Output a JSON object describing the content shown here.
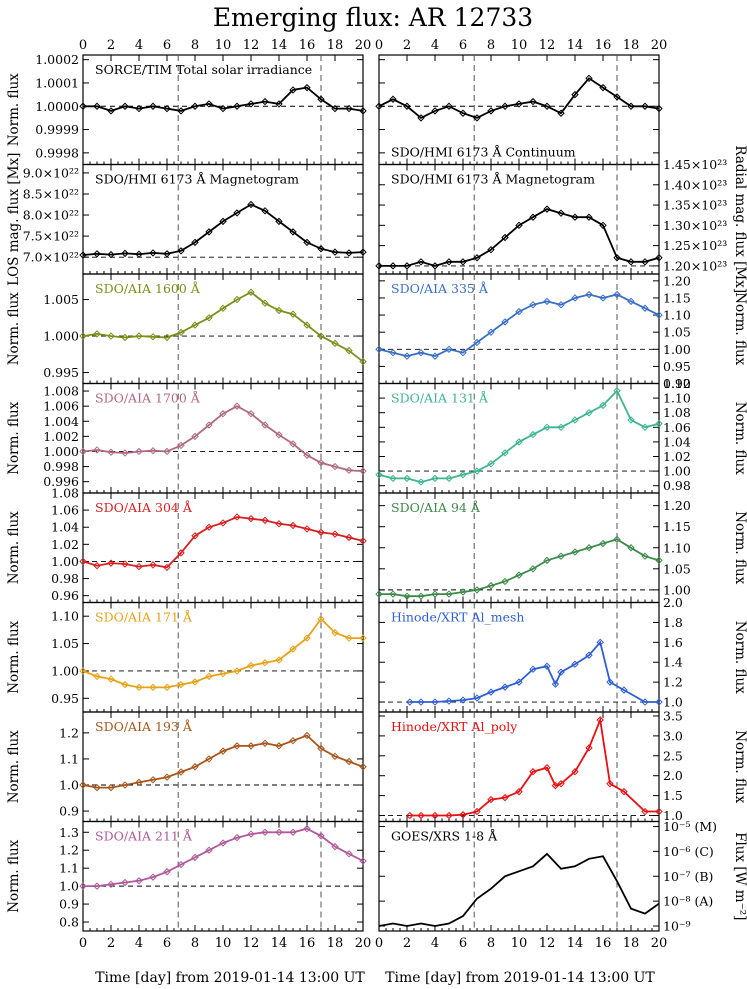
{
  "title": "Emerging flux: AR 12733",
  "xlabel": "Time [day] from 2019-01-14 13:00 UT",
  "x_ticks": [
    0,
    2,
    4,
    6,
    8,
    10,
    12,
    14,
    16,
    18,
    20
  ],
  "xlim": [
    0,
    20
  ],
  "vlines": [
    6.8,
    17.0
  ],
  "chart_data": [
    {
      "id": "tsi",
      "type": "line",
      "label": "SORCE/TIM Total solar irradiance",
      "color": "#000000",
      "ylabel": "Norm. flux",
      "ylim": [
        0.99975,
        1.00022
      ],
      "yticks": [
        0.9998,
        0.9999,
        1.0,
        1.0001,
        1.0002
      ],
      "tick_labels": [
        "0.9998",
        "0.9999",
        "1.0000",
        "1.0001",
        "1.0002"
      ],
      "ref": 1.0,
      "x": [
        0,
        1,
        2,
        3,
        4,
        5,
        6,
        7,
        8,
        9,
        10,
        11,
        12,
        13,
        14,
        15,
        16,
        17,
        18,
        19,
        20
      ],
      "values": [
        1.0,
        1.0,
        0.99998,
        1.0,
        0.99999,
        1.0,
        0.99999,
        0.99998,
        1.0,
        1.00001,
        0.99999,
        1.0,
        1.00001,
        1.00002,
        1.00001,
        1.00007,
        1.00008,
        1.00003,
        0.99999,
        0.99999,
        0.99998
      ]
    },
    {
      "id": "cont",
      "type": "line",
      "label": "SDO/HMI 6173 Å Continuum",
      "color": "#000000",
      "ylabel": "",
      "ylim": [
        0.99975,
        1.00022
      ],
      "yticks": [
        0.9998,
        0.9999,
        1.0,
        1.0001,
        1.0002
      ],
      "tick_labels": [
        "",
        "",
        "",
        "",
        ""
      ],
      "ref": 1.0,
      "x": [
        0,
        1,
        2,
        3,
        4,
        5,
        6,
        7,
        8,
        9,
        10,
        11,
        12,
        13,
        14,
        15,
        16,
        17,
        18,
        19,
        20
      ],
      "values": [
        1.0,
        1.00003,
        1.0,
        0.99995,
        0.99998,
        1.0,
        0.99997,
        0.99995,
        0.99998,
        1.0,
        1.00001,
        1.00002,
        1.0,
        0.99997,
        1.00005,
        1.00012,
        1.00008,
        1.00004,
        1.0,
        1.0,
        0.99999
      ]
    },
    {
      "id": "los",
      "type": "line",
      "label": "SDO/HMI 6173 Å Magnetogram",
      "color": "#000000",
      "ylabel": "LOS mag. flux [Mx]",
      "ylim": [
        6.6e+22,
        9.2e+22
      ],
      "yticks": [
        7e+22,
        7.5e+22,
        8e+22,
        8.5e+22,
        9e+22
      ],
      "tick_labels": [
        "7.0×10²²",
        "7.5×10²²",
        "8.0×10²²",
        "8.5×10²²",
        "9.0×10²²"
      ],
      "ref": 7e+22,
      "x": [
        0,
        1,
        2,
        3,
        4,
        5,
        6,
        7,
        8,
        9,
        10,
        11,
        12,
        13,
        14,
        15,
        16,
        17,
        18,
        19,
        20
      ],
      "values": [
        7.05e+22,
        7.08e+22,
        7.06e+22,
        7.09e+22,
        7.07e+22,
        7.1e+22,
        7.08e+22,
        7.15e+22,
        7.35e+22,
        7.6e+22,
        7.85e+22,
        8.05e+22,
        8.25e+22,
        8.1e+22,
        7.85e+22,
        7.6e+22,
        7.35e+22,
        7.2e+22,
        7.12e+22,
        7.1e+22,
        7.12e+22
      ]
    },
    {
      "id": "radial",
      "type": "line",
      "label": "SDO/HMI 6173 Å Magnetogram",
      "color": "#000000",
      "ylabel": "Radial mag. flux [Mx]",
      "ylim": [
        1.18e+23,
        1.45e+23
      ],
      "yticks": [
        1.2e+23,
        1.25e+23,
        1.3e+23,
        1.35e+23,
        1.4e+23,
        1.45e+23
      ],
      "tick_labels": [
        "1.20×10²³",
        "1.25×10²³",
        "1.30×10²³",
        "1.35×10²³",
        "1.40×10²³",
        "1.45×10²³"
      ],
      "ref": 1.2e+23,
      "x": [
        0,
        1,
        2,
        3,
        4,
        5,
        6,
        7,
        8,
        9,
        10,
        11,
        12,
        13,
        14,
        15,
        16,
        17,
        18,
        19,
        20
      ],
      "values": [
        1.2e+23,
        1.2e+23,
        1.2e+23,
        1.21e+23,
        1.2e+23,
        1.21e+23,
        1.21e+23,
        1.22e+23,
        1.24e+23,
        1.27e+23,
        1.3e+23,
        1.32e+23,
        1.34e+23,
        1.33e+23,
        1.32e+23,
        1.32e+23,
        1.3e+23,
        1.22e+23,
        1.21e+23,
        1.21e+23,
        1.22e+23
      ]
    },
    {
      "id": "aia1600",
      "type": "line",
      "label": "SDO/AIA 1600 Å",
      "color": "#7b8f1a",
      "ylabel": "Norm. flux",
      "ylim": [
        0.9935,
        1.0085
      ],
      "yticks": [
        0.995,
        1.0,
        1.005
      ],
      "tick_labels": [
        "0.995",
        "1.000",
        "1.005"
      ],
      "ref": 1.0,
      "x": [
        0,
        1,
        2,
        3,
        4,
        5,
        6,
        7,
        8,
        9,
        10,
        11,
        12,
        13,
        14,
        15,
        16,
        17,
        18,
        19,
        20
      ],
      "values": [
        1.0,
        1.0003,
        1.0,
        0.9998,
        1.0,
        0.9999,
        0.9998,
        1.0005,
        1.0015,
        1.0025,
        1.0038,
        1.005,
        1.006,
        1.0045,
        1.0035,
        1.003,
        1.0015,
        1.0,
        0.999,
        0.998,
        0.9965
      ]
    },
    {
      "id": "aia335",
      "type": "line",
      "label": "SDO/AIA 335 Å",
      "color": "#3a6fc8",
      "ylabel": "Norm. flux",
      "ylim": [
        0.9,
        1.22
      ],
      "yticks": [
        0.9,
        0.95,
        1.0,
        1.05,
        1.1,
        1.15,
        1.2
      ],
      "tick_labels": [
        "0.90",
        "0.95",
        "1.00",
        "1.05",
        "1.10",
        "1.15",
        "1.20"
      ],
      "ref": 1.0,
      "x": [
        0,
        1,
        2,
        3,
        4,
        5,
        6,
        7,
        8,
        9,
        10,
        11,
        12,
        13,
        14,
        15,
        16,
        17,
        18,
        19,
        20
      ],
      "values": [
        1.0,
        0.99,
        0.98,
        0.99,
        0.98,
        1.0,
        0.99,
        1.02,
        1.05,
        1.08,
        1.11,
        1.13,
        1.14,
        1.13,
        1.15,
        1.16,
        1.15,
        1.16,
        1.14,
        1.12,
        1.1
      ]
    },
    {
      "id": "aia1700",
      "type": "line",
      "label": "SDO/AIA 1700 Å",
      "color": "#b06a80",
      "ylabel": "Norm. flux",
      "ylim": [
        0.9945,
        1.009
      ],
      "yticks": [
        0.996,
        0.998,
        1.0,
        1.002,
        1.004,
        1.006,
        1.008
      ],
      "tick_labels": [
        "0.996",
        "0.998",
        "1.000",
        "1.002",
        "1.004",
        "1.006",
        "1.008"
      ],
      "ref": 1.0,
      "x": [
        0,
        1,
        2,
        3,
        4,
        5,
        6,
        7,
        8,
        9,
        10,
        11,
        12,
        13,
        14,
        15,
        16,
        17,
        18,
        19,
        20
      ],
      "values": [
        1.0,
        1.0002,
        0.9999,
        0.9998,
        1.0,
        1.0001,
        1.0,
        1.0008,
        1.002,
        1.0035,
        1.005,
        1.006,
        1.005,
        1.0035,
        1.0022,
        1.001,
        0.9995,
        0.9985,
        0.998,
        0.9975,
        0.9974
      ]
    },
    {
      "id": "aia131",
      "type": "line",
      "label": "SDO/AIA 131 Å",
      "color": "#3fb58f",
      "ylabel": "Norm. flux",
      "ylim": [
        0.97,
        1.12
      ],
      "yticks": [
        0.98,
        1.0,
        1.02,
        1.04,
        1.06,
        1.08,
        1.1,
        1.12
      ],
      "tick_labels": [
        "0.98",
        "1.00",
        "1.02",
        "1.04",
        "1.06",
        "1.08",
        "1.10",
        "1.12"
      ],
      "ref": 1.0,
      "x": [
        0,
        1,
        2,
        3,
        4,
        5,
        6,
        7,
        8,
        9,
        10,
        11,
        12,
        13,
        14,
        15,
        16,
        17,
        18,
        19,
        20
      ],
      "values": [
        0.995,
        0.99,
        0.99,
        0.985,
        0.99,
        0.99,
        0.995,
        1.0,
        1.01,
        1.025,
        1.04,
        1.05,
        1.06,
        1.06,
        1.07,
        1.08,
        1.09,
        1.11,
        1.07,
        1.06,
        1.065
      ]
    },
    {
      "id": "aia304",
      "type": "line",
      "label": "SDO/AIA 304 Å",
      "color": "#d81f1f",
      "ylabel": "Norm. flux",
      "ylim": [
        0.952,
        1.08
      ],
      "yticks": [
        0.96,
        0.98,
        1.0,
        1.02,
        1.04,
        1.06,
        1.08
      ],
      "tick_labels": [
        "0.96",
        "0.98",
        "1.00",
        "1.02",
        "1.04",
        "1.06",
        "1.08"
      ],
      "ref": 1.0,
      "x": [
        0,
        1,
        2,
        3,
        4,
        5,
        6,
        7,
        8,
        9,
        10,
        11,
        12,
        13,
        14,
        15,
        16,
        17,
        18,
        19,
        20
      ],
      "values": [
        1.0,
        0.995,
        0.998,
        0.997,
        0.994,
        0.996,
        0.993,
        1.01,
        1.03,
        1.04,
        1.045,
        1.052,
        1.05,
        1.048,
        1.044,
        1.042,
        1.038,
        1.034,
        1.032,
        1.028,
        1.024
      ]
    },
    {
      "id": "aia94",
      "type": "line",
      "label": "SDO/AIA 94 Å",
      "color": "#3b8a49",
      "ylabel": "Norm. flux",
      "ylim": [
        0.97,
        1.23
      ],
      "yticks": [
        1.0,
        1.05,
        1.1,
        1.15,
        1.2
      ],
      "tick_labels": [
        "1.00",
        "1.05",
        "1.10",
        "1.15",
        "1.20"
      ],
      "ref": 1.0,
      "x": [
        0,
        1,
        2,
        3,
        4,
        5,
        6,
        7,
        8,
        9,
        10,
        11,
        12,
        13,
        14,
        15,
        16,
        17,
        18,
        19,
        20
      ],
      "values": [
        0.99,
        0.99,
        0.985,
        0.985,
        0.99,
        0.99,
        0.995,
        1.0,
        1.01,
        1.02,
        1.035,
        1.05,
        1.07,
        1.08,
        1.09,
        1.1,
        1.11,
        1.12,
        1.1,
        1.08,
        1.07
      ]
    },
    {
      "id": "aia171",
      "type": "line",
      "label": "SDO/AIA 171 Å",
      "color": "#e8a21a",
      "ylabel": "Norm. flux",
      "ylim": [
        0.925,
        1.125
      ],
      "yticks": [
        0.95,
        1.0,
        1.05,
        1.1
      ],
      "tick_labels": [
        "0.95",
        "1.00",
        "1.05",
        "1.10"
      ],
      "ref": 1.0,
      "x": [
        0,
        1,
        2,
        3,
        4,
        5,
        6,
        7,
        8,
        9,
        10,
        11,
        12,
        13,
        14,
        15,
        16,
        17,
        18,
        19,
        20
      ],
      "values": [
        1.0,
        0.99,
        0.985,
        0.975,
        0.97,
        0.97,
        0.97,
        0.975,
        0.98,
        0.99,
        0.995,
        1.0,
        1.01,
        1.015,
        1.02,
        1.04,
        1.06,
        1.095,
        1.07,
        1.06,
        1.06
      ]
    },
    {
      "id": "xrt_mesh",
      "type": "line",
      "label": "Hinode/XRT Al_mesh",
      "color": "#2f5fd6",
      "ylabel": "Norm. flux",
      "ylim": [
        0.9,
        2.0
      ],
      "yticks": [
        1.0,
        1.2,
        1.4,
        1.6,
        1.8,
        2.0
      ],
      "tick_labels": [
        "1.0",
        "1.2",
        "1.4",
        "1.6",
        "1.8",
        "2.0"
      ],
      "ref": 1.0,
      "x": [
        2.2,
        3,
        4,
        5,
        6,
        7,
        8,
        9,
        10,
        11,
        12,
        12.6,
        13,
        14,
        15,
        15.8,
        16.5,
        17.5,
        19,
        20
      ],
      "values": [
        1.0,
        1.0,
        1.0,
        1.01,
        1.02,
        1.04,
        1.1,
        1.15,
        1.2,
        1.33,
        1.36,
        1.18,
        1.3,
        1.38,
        1.47,
        1.6,
        1.2,
        1.12,
        1.0,
        1.0
      ]
    },
    {
      "id": "aia193",
      "type": "line",
      "label": "SDO/AIA 193 Å",
      "color": "#a8561a",
      "ylabel": "Norm. flux",
      "ylim": [
        0.86,
        1.28
      ],
      "yticks": [
        0.9,
        1.0,
        1.1,
        1.2
      ],
      "tick_labels": [
        "0.9",
        "1.0",
        "1.1",
        "1.2"
      ],
      "ref": 1.0,
      "x": [
        0,
        1,
        2,
        3,
        4,
        5,
        6,
        7,
        8,
        9,
        10,
        11,
        12,
        13,
        14,
        15,
        16,
        17,
        18,
        19,
        20
      ],
      "values": [
        1.0,
        0.99,
        0.99,
        1.0,
        1.01,
        1.02,
        1.03,
        1.05,
        1.07,
        1.1,
        1.13,
        1.15,
        1.15,
        1.16,
        1.15,
        1.17,
        1.19,
        1.14,
        1.11,
        1.09,
        1.07
      ]
    },
    {
      "id": "xrt_poly",
      "type": "line",
      "label": "Hinode/XRT Al_poly",
      "color": "#e81010",
      "ylabel": "Norm. flux",
      "ylim": [
        0.85,
        3.6
      ],
      "yticks": [
        1.0,
        1.5,
        2.0,
        2.5,
        3.0,
        3.5
      ],
      "tick_labels": [
        "1.0",
        "1.5",
        "2.0",
        "2.5",
        "3.0",
        "3.5"
      ],
      "ref": 1.0,
      "x": [
        2.2,
        3,
        4,
        5,
        6,
        7,
        8,
        9,
        10,
        11,
        12,
        12.6,
        13,
        14,
        15,
        15.8,
        16.5,
        17.5,
        19,
        20
      ],
      "values": [
        1.0,
        1.0,
        1.0,
        1.0,
        1.02,
        1.1,
        1.4,
        1.45,
        1.6,
        2.1,
        2.2,
        1.75,
        1.8,
        2.1,
        2.7,
        3.4,
        1.8,
        1.6,
        1.1,
        1.1
      ]
    },
    {
      "id": "aia211",
      "type": "line",
      "label": "SDO/AIA 211 Å",
      "color": "#b05a9a",
      "ylabel": "Norm. flux",
      "ylim": [
        0.75,
        1.36
      ],
      "yticks": [
        0.8,
        0.9,
        1.0,
        1.1,
        1.2,
        1.3
      ],
      "tick_labels": [
        "0.8",
        "0.9",
        "1.0",
        "1.1",
        "1.2",
        "1.3"
      ],
      "ref": 1.0,
      "x": [
        0,
        1,
        2,
        3,
        4,
        5,
        6,
        7,
        8,
        9,
        10,
        11,
        12,
        13,
        14,
        15,
        16,
        17,
        18,
        19,
        20
      ],
      "values": [
        1.0,
        1.0,
        1.01,
        1.02,
        1.03,
        1.05,
        1.08,
        1.12,
        1.16,
        1.2,
        1.24,
        1.27,
        1.29,
        1.3,
        1.3,
        1.3,
        1.32,
        1.28,
        1.22,
        1.18,
        1.14
      ]
    },
    {
      "id": "goes",
      "type": "line",
      "label": "GOES/XRS 1-8 Å",
      "color": "#000000",
      "ylabel": "Flux [W m⁻²]",
      "scale": "log",
      "ylim": [
        -9.2,
        -4.8
      ],
      "yticks": [
        -9,
        -8,
        -7,
        -6,
        -5
      ],
      "tick_labels": [
        "10⁻⁹",
        "10⁻⁸ (A)",
        "10⁻⁷ (B)",
        "10⁻⁶ (C)",
        "10⁻⁵ (M)"
      ],
      "ref": null,
      "x": [
        0,
        1,
        2,
        3,
        4,
        5,
        6,
        7,
        8,
        9,
        10,
        11,
        12,
        13,
        14,
        15,
        16,
        17,
        18,
        19,
        20
      ],
      "values": [
        -9.0,
        -8.9,
        -9.0,
        -8.9,
        -9.0,
        -8.9,
        -8.6,
        -7.9,
        -7.5,
        -7.0,
        -6.8,
        -6.6,
        -6.1,
        -6.7,
        -6.6,
        -6.3,
        -6.2,
        -7.2,
        -8.3,
        -8.5,
        -8.1
      ]
    }
  ]
}
